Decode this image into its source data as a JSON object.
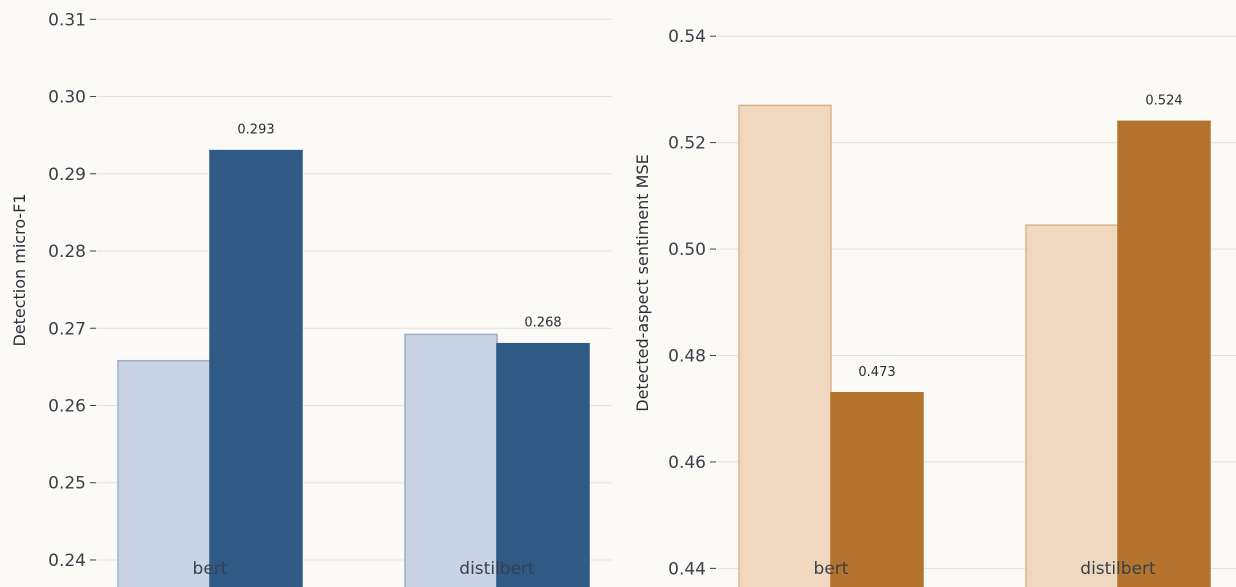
{
  "chart_data": [
    {
      "type": "bar",
      "ylabel": "Detection micro-F1",
      "xlabel": "",
      "categories": [
        "bert",
        "distilbert"
      ],
      "ylim": [
        0.2365,
        0.3125
      ],
      "yticks": [
        0.24,
        0.25,
        0.26,
        0.27,
        0.28,
        0.29,
        0.3,
        0.31
      ],
      "ytick_labels": [
        "0.24",
        "0.25",
        "0.26",
        "0.27",
        "0.28",
        "0.29",
        "0.30",
        "0.31"
      ],
      "grid": true,
      "series": [
        {
          "values": [
            0.2658,
            0.2692
          ],
          "labels": [
            "",
            ""
          ],
          "fill": "#c8d4e3",
          "stroke": "#9aaecb"
        },
        {
          "values": [
            0.293,
            0.268
          ],
          "labels": [
            "0.293",
            "0.268"
          ],
          "fill": "#2f5a86",
          "stroke": "#2f5a86"
        }
      ]
    },
    {
      "type": "bar",
      "ylabel": "Detected-aspect sentiment MSE",
      "xlabel": "",
      "categories": [
        "bert",
        "distilbert"
      ],
      "ylim": [
        0.4365,
        0.5468
      ],
      "yticks": [
        0.44,
        0.46,
        0.48,
        0.5,
        0.52,
        0.54
      ],
      "ytick_labels": [
        "0.44",
        "0.46",
        "0.48",
        "0.50",
        "0.52",
        "0.54"
      ],
      "grid": true,
      "series": [
        {
          "values": [
            0.527,
            0.5045
          ],
          "labels": [
            "",
            ""
          ],
          "fill": "#f0d8c0",
          "stroke": "#dcb388"
        },
        {
          "values": [
            0.473,
            0.524
          ],
          "labels": [
            "0.473",
            "0.524"
          ],
          "fill": "#b5742e",
          "stroke": "#b5742e"
        }
      ]
    }
  ]
}
